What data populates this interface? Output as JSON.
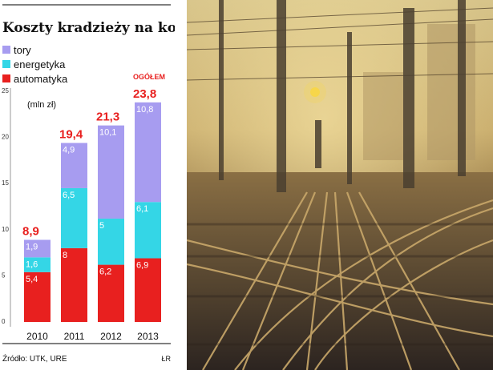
{
  "chart_data": {
    "type": "bar",
    "title": "Koszty kradzieży na kolei",
    "unit_label": "(mln zł)",
    "categories": [
      "2010",
      "2011",
      "2012",
      "2013"
    ],
    "series": [
      {
        "name": "automatyka",
        "color": "#e8201f",
        "values": [
          5.4,
          8.0,
          6.2,
          6.9
        ]
      },
      {
        "name": "energetyka",
        "color": "#34d6e6",
        "values": [
          1.6,
          6.5,
          5.0,
          6.1
        ]
      },
      {
        "name": "tory",
        "color": "#a79cf0",
        "values": [
          1.9,
          4.9,
          10.1,
          10.8
        ]
      }
    ],
    "totals": [
      8.9,
      19.4,
      21.3,
      23.8
    ],
    "totals_color": "#e8201f",
    "totals_label": "OGÓŁEM",
    "ylim": [
      0,
      25
    ],
    "yticks": [
      0,
      5,
      10,
      15,
      20,
      25
    ],
    "legend_position": "top-left",
    "grid": false
  },
  "source": "Źródło: UTK, URE",
  "credit": "ŁR",
  "photo": {
    "subject": "railway-tracks-in-fog"
  }
}
